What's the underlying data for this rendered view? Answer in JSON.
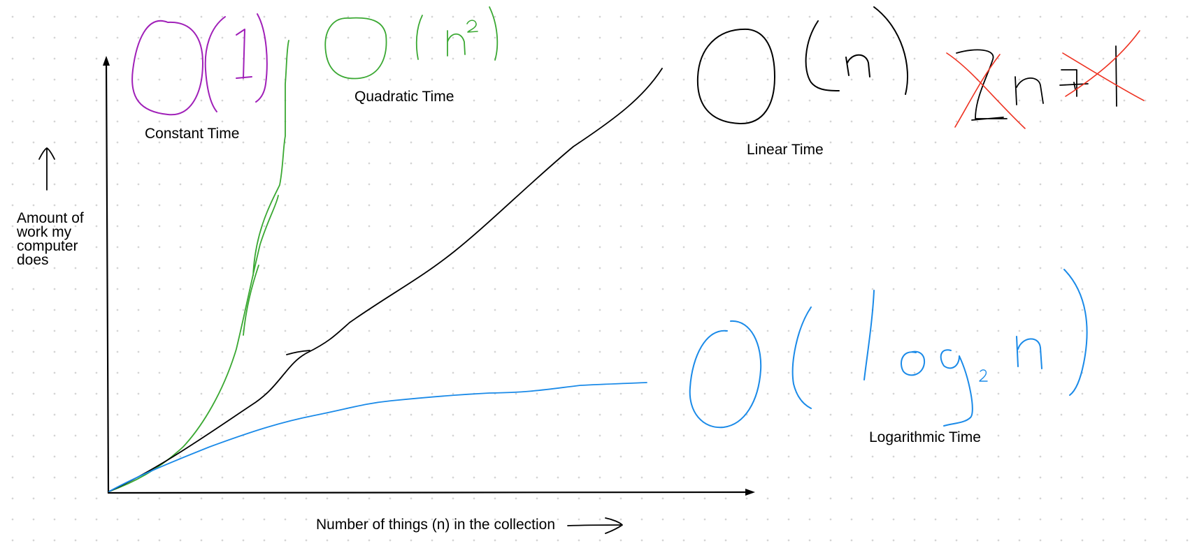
{
  "labels": {
    "constant_time": "Constant Time",
    "quadratic_time": "Quadratic Time",
    "linear_time": "Linear Time",
    "logarithmic_time": "Logarithmic Time",
    "x_axis": "Number of things (n) in the collection",
    "y_axis_lines": [
      "Amount of",
      "work my",
      "computer",
      "does"
    ]
  },
  "notations": {
    "constant": "O(1)",
    "quadratic": "O(n²)",
    "linear": "O(n)",
    "logarithmic": "O(log₂ n)",
    "crossed_out": "2n+1"
  },
  "colors": {
    "constant": "#a020b8",
    "quadratic": "#3aa832",
    "linear": "#000000",
    "logarithmic": "#1a8ae8",
    "crossed_out_strike": "#ee3322",
    "axes": "#000000",
    "grid_dot": "#d4d4d4"
  },
  "icons": {
    "y_arrow": "up-arrow-icon",
    "x_arrow": "right-arrow-icon"
  }
}
